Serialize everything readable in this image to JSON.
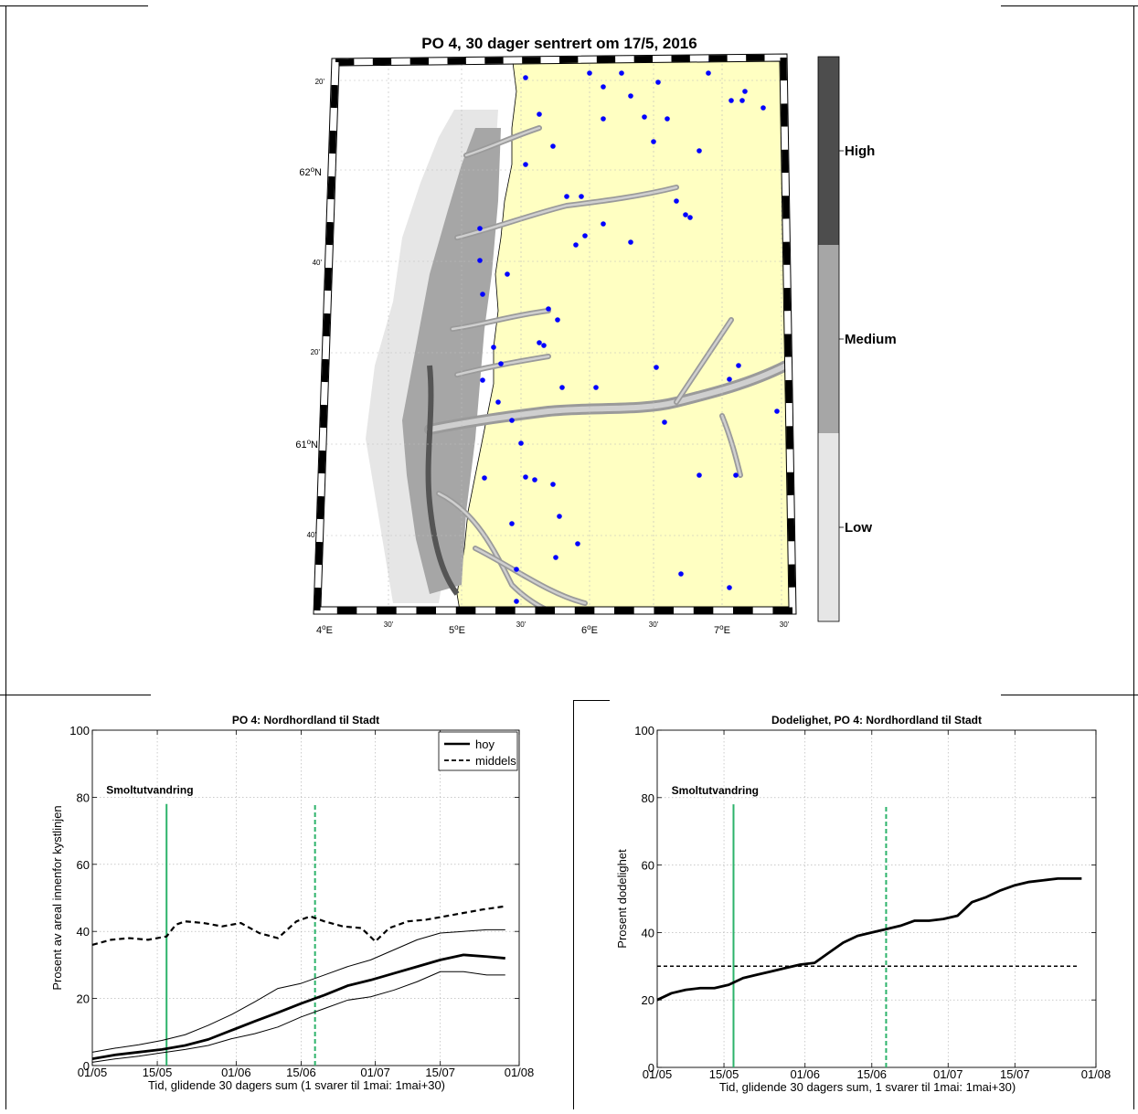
{
  "map": {
    "title": "PO 4, 30 dager sentrert om 17/5, 2016",
    "lon_ticks": [
      {
        "base": "4",
        "sup": "o",
        "suffix": "E"
      },
      {
        "base": "30'",
        "sup": "",
        "suffix": ""
      },
      {
        "base": "5",
        "sup": "o",
        "suffix": "E"
      },
      {
        "base": "30'",
        "sup": "",
        "suffix": ""
      },
      {
        "base": "6",
        "sup": "o",
        "suffix": "E"
      },
      {
        "base": "30'",
        "sup": "",
        "suffix": ""
      },
      {
        "base": "7",
        "sup": "o",
        "suffix": "E"
      },
      {
        "base": "30'",
        "sup": "",
        "suffix": ""
      }
    ],
    "lat_ticks": [
      {
        "base": "20'",
        "sup": "",
        "suffix": ""
      },
      {
        "base": "62",
        "sup": "o",
        "suffix": "N"
      },
      {
        "base": "40'",
        "sup": "",
        "suffix": ""
      },
      {
        "base": "20'",
        "sup": "",
        "suffix": ""
      },
      {
        "base": "61",
        "sup": "o",
        "suffix": "N"
      },
      {
        "base": "40'",
        "sup": "",
        "suffix": ""
      }
    ],
    "colorbar": {
      "labels": [
        "High",
        "Medium",
        "Low"
      ],
      "colors": [
        "#4d4d4d",
        "#a6a6a6",
        "#e6e6e6"
      ]
    },
    "land_color": "#ffffc2",
    "marker_color": "#0000ff"
  },
  "chart_data": [
    {
      "type": "line",
      "title": "PO 4: Nordhordland til Stadt",
      "xlabel": "Tid, glidende 30 dagers sum (1 svarer til 1mai: 1mai+30)",
      "ylabel": "Prosent av areal innenfor kystlinjen",
      "xlim": [
        "01/05",
        "01/08"
      ],
      "ylim": [
        0,
        100
      ],
      "x_ticks": [
        "01/05",
        "15/05",
        "01/06",
        "15/06",
        "01/07",
        "15/07",
        "01/08"
      ],
      "y_ticks": [
        0,
        20,
        40,
        60,
        80,
        100
      ],
      "grid": true,
      "legend": {
        "position": "top-right",
        "entries": [
          "hoy",
          "middels"
        ]
      },
      "annotation": "Smoltutvandring",
      "markers": [
        {
          "x": "17/05",
          "ymax": 78,
          "style": "solid",
          "color": "#2db36b"
        },
        {
          "x": "18/06",
          "ymax": 78,
          "style": "dashed",
          "color": "#2db36b"
        }
      ],
      "series": [
        {
          "name": "hoy",
          "style": "solid-thick",
          "x": [
            0,
            5,
            10,
            15,
            20,
            25,
            30,
            35,
            40,
            45,
            50,
            55,
            60,
            65,
            70,
            75,
            80,
            85,
            89
          ],
          "y": [
            2,
            3.2,
            4,
            4.8,
            6,
            7.8,
            10.5,
            13.2,
            15.8,
            18.5,
            21,
            23.8,
            25.5,
            27.5,
            29.5,
            31.5,
            33,
            32.5,
            32
          ]
        },
        {
          "name": "",
          "style": "solid-thin",
          "x": [
            0,
            5,
            10,
            15,
            20,
            25,
            30,
            35,
            40,
            45,
            50,
            55,
            60,
            65,
            70,
            75,
            80,
            85,
            89
          ],
          "y": [
            4,
            5.2,
            6.2,
            7.5,
            9.2,
            12,
            15.2,
            19,
            23,
            24.5,
            27,
            29.5,
            31.5,
            34.5,
            37.5,
            39.5,
            40,
            40.5,
            40.5
          ]
        },
        {
          "name": "",
          "style": "solid-thin",
          "x": [
            0,
            5,
            10,
            15,
            20,
            25,
            30,
            35,
            40,
            45,
            50,
            55,
            60,
            65,
            70,
            75,
            80,
            85,
            89
          ],
          "y": [
            1,
            2,
            2.8,
            3.8,
            4.8,
            6,
            8,
            9.5,
            11.5,
            14.5,
            17,
            19.5,
            20.5,
            22.5,
            25,
            28,
            28,
            27,
            27
          ]
        },
        {
          "name": "middels",
          "style": "dashed",
          "x": [
            0,
            4,
            8,
            12,
            16,
            18,
            20,
            24,
            28,
            32,
            36,
            40,
            44,
            47,
            50,
            54,
            58,
            61,
            64,
            68,
            72,
            76,
            80,
            84,
            89
          ],
          "y": [
            36,
            37.5,
            38,
            37.5,
            38.5,
            42,
            43,
            42.5,
            41.5,
            42.5,
            39.5,
            38,
            43,
            44.5,
            43,
            41.5,
            41,
            37,
            41,
            43,
            43.5,
            44.5,
            45.5,
            46.5,
            47.5
          ]
        }
      ]
    },
    {
      "type": "line",
      "title": "Dodelighet, PO 4: Nordhordland til Stadt",
      "xlabel": "Tid, glidende 30 dagers sum, 1 svarer til 1mai: 1mai+30)",
      "ylabel": "Prosent dodelighet",
      "xlim": [
        "01/05",
        "01/08"
      ],
      "ylim": [
        0,
        100
      ],
      "x_ticks": [
        "01/05",
        "15/05",
        "01/06",
        "15/06",
        "01/07",
        "15/07",
        "01/08"
      ],
      "y_ticks": [
        0,
        20,
        40,
        60,
        80,
        100
      ],
      "grid": true,
      "annotation": "Smoltutvandring",
      "markers": [
        {
          "x": "17/05",
          "ymax": 78,
          "style": "solid",
          "color": "#2db36b"
        },
        {
          "x": "18/06",
          "ymax": 78,
          "style": "dashed",
          "color": "#2db36b"
        }
      ],
      "reference_line": {
        "y": 30,
        "style": "dashed"
      },
      "series": [
        {
          "name": "",
          "style": "solid-thick",
          "x": [
            0,
            3,
            6,
            9,
            12,
            15,
            18,
            21,
            24,
            27,
            30,
            33,
            36,
            39,
            42,
            45,
            48,
            51,
            54,
            57,
            60,
            63,
            66,
            69,
            72,
            75,
            78,
            81,
            84,
            87,
            89
          ],
          "y": [
            20,
            22,
            23,
            23.5,
            23.5,
            24.5,
            26.5,
            27.5,
            28.5,
            29.5,
            30.5,
            31,
            34,
            37,
            39,
            40,
            41,
            42,
            43.5,
            43.5,
            44,
            45,
            49,
            50.5,
            52.5,
            54,
            55,
            55.5,
            56,
            56,
            56
          ]
        }
      ]
    }
  ]
}
